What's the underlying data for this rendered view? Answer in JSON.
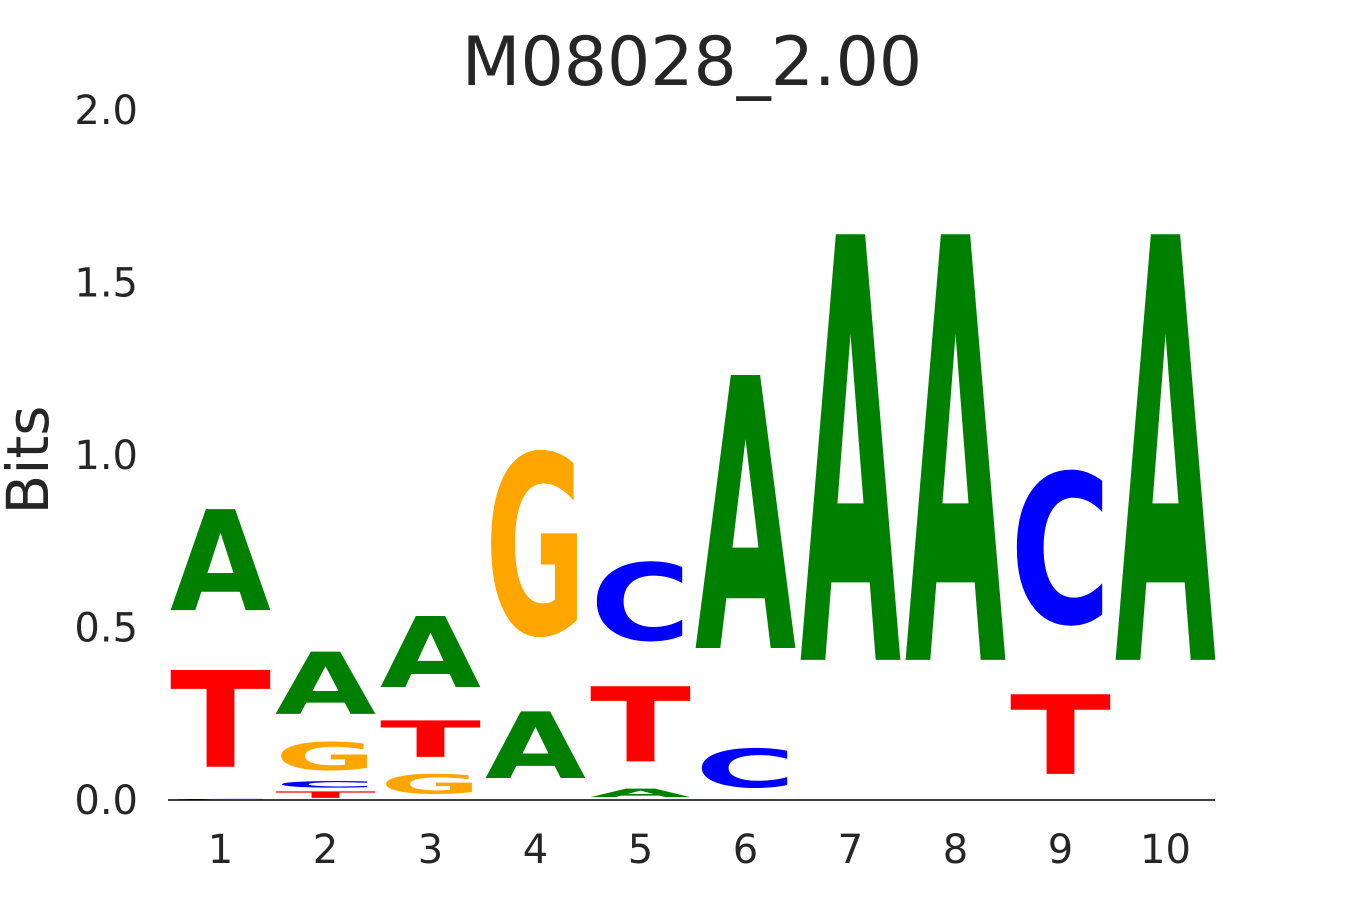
{
  "chart_data": {
    "type": "sequence-logo",
    "title": "M08028_2.00",
    "ylabel": "Bits",
    "xlabel": "",
    "ylim": [
      0,
      2
    ],
    "yticks": [
      "0.0",
      "0.5",
      "1.0",
      "1.5",
      "2.0"
    ],
    "positions": [
      "1",
      "2",
      "3",
      "4",
      "5",
      "6",
      "7",
      "8",
      "9",
      "10"
    ],
    "colors": {
      "A": "#008000",
      "C": "#0000ff",
      "G": "#ffa500",
      "T": "#ff0000"
    },
    "stacks": [
      [
        {
          "base": "C",
          "bits": 0.004
        },
        {
          "base": "T",
          "bits": 0.45
        },
        {
          "base": "A",
          "bits": 0.47
        }
      ],
      [
        {
          "base": "T",
          "bits": 0.03
        },
        {
          "base": "C",
          "bits": 0.03
        },
        {
          "base": "G",
          "bits": 0.13
        },
        {
          "base": "A",
          "bits": 0.29
        }
      ],
      [
        {
          "base": "G",
          "bits": 0.09
        },
        {
          "base": "T",
          "bits": 0.17
        },
        {
          "base": "A",
          "bits": 0.33
        }
      ],
      [
        {
          "base": "A",
          "bits": 0.31
        },
        {
          "base": "G",
          "bits": 0.84
        }
      ],
      [
        {
          "base": "A",
          "bits": 0.04
        },
        {
          "base": "T",
          "bits": 0.35
        },
        {
          "base": "C",
          "bits": 0.36
        }
      ],
      [
        {
          "base": "C",
          "bits": 0.18
        },
        {
          "base": "A",
          "bits": 1.27
        }
      ],
      [
        {
          "base": "A",
          "bits": 1.98
        }
      ],
      [
        {
          "base": "A",
          "bits": 1.98
        }
      ],
      [
        {
          "base": "T",
          "bits": 0.37
        },
        {
          "base": "C",
          "bits": 0.7
        }
      ],
      [
        {
          "base": "A",
          "bits": 1.98
        }
      ]
    ]
  }
}
